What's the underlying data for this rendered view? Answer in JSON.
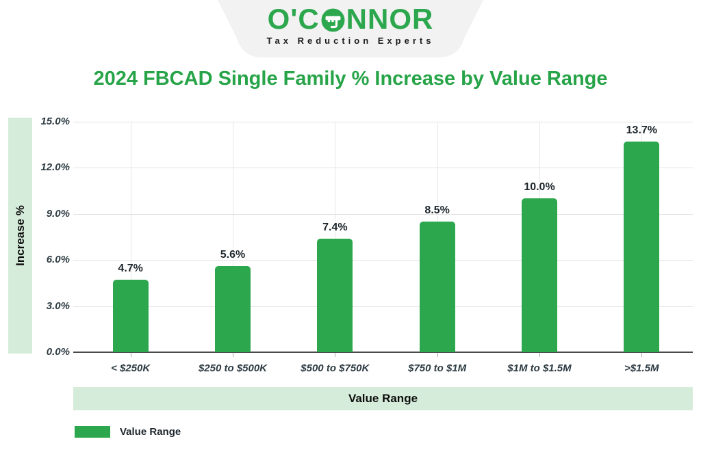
{
  "header": {
    "logo": {
      "full_text": "O'CONNOR",
      "text_left": "O'C",
      "text_right": "NNOR",
      "tagline": "Tax Reduction Experts"
    }
  },
  "title": "2024 FBCAD Single Family % Increase by Value Range",
  "chart_data": {
    "type": "bar",
    "title": "2024 FBCAD Single Family % Increase by Value Range",
    "categories": [
      "< $250K",
      "$250 to $500K",
      "$500 to $750K",
      "$750 to $1M",
      "$1M to $1.5M",
      ">$1.5M"
    ],
    "values": [
      4.7,
      5.6,
      7.4,
      8.5,
      10.0,
      13.7
    ],
    "value_labels": [
      "4.7%",
      "5.6%",
      "7.4%",
      "8.5%",
      "10.0%",
      "13.7%"
    ],
    "series_name": "Value Range",
    "xlabel": "Value Range",
    "ylabel": "Increase %",
    "ylim": [
      0,
      15
    ],
    "ytick_step": 3,
    "ytick_labels": [
      "0.0%",
      "3.0%",
      "6.0%",
      "9.0%",
      "12.0%",
      "15.0%"
    ],
    "grid": true,
    "legend_position": "bottom-left",
    "legend_label": "Value Range"
  },
  "colors": {
    "bar_green": "#2ca74d",
    "title_green": "#27a448",
    "band_green": "#d5ecda",
    "tick_text": "#2d3b42",
    "banner_gray": "#f2f2f2"
  }
}
